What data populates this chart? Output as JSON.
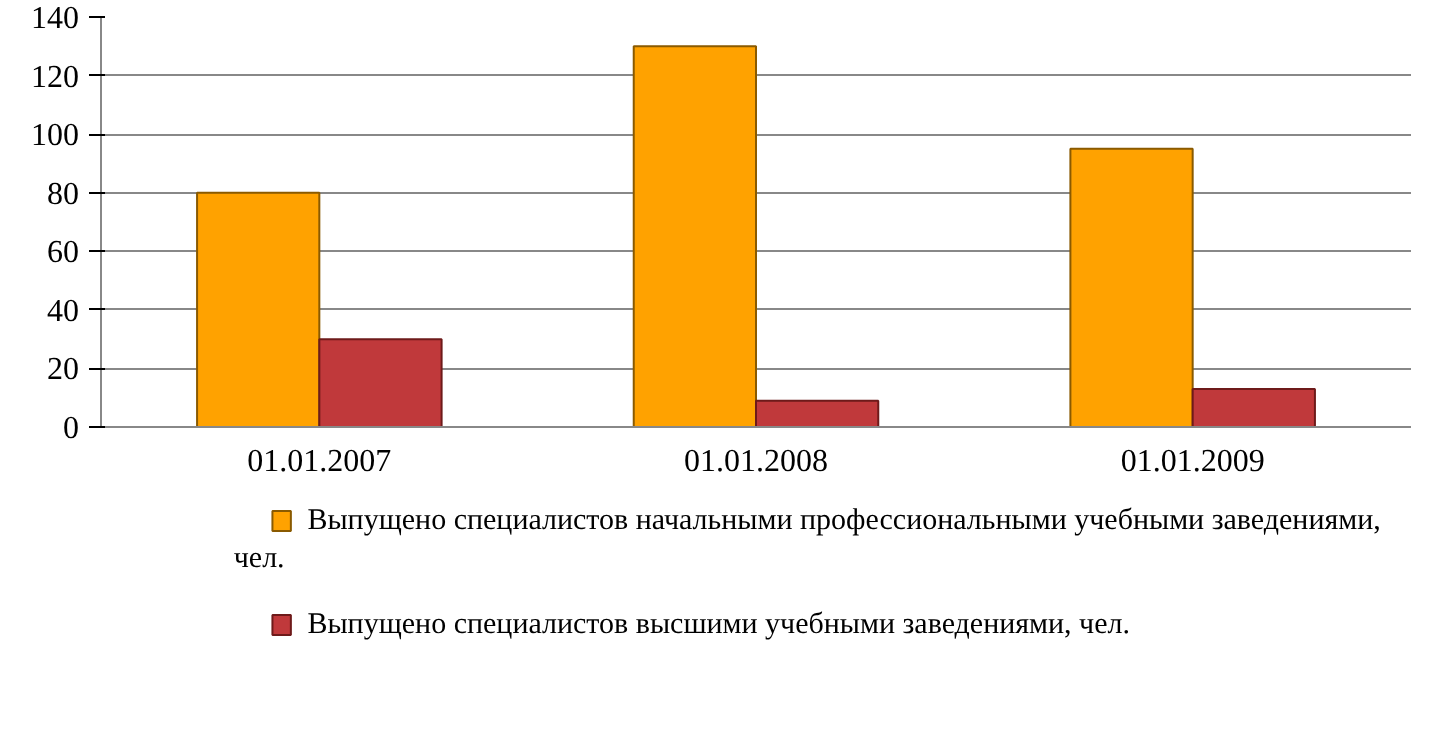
{
  "chart_data": {
    "type": "bar",
    "categories": [
      "01.01.2007",
      "01.01.2008",
      "01.01.2009"
    ],
    "series": [
      {
        "name": "Выпущено специалистов начальными профессиональными учебными заведениями, чел.",
        "color": "#ffa200",
        "values": [
          80,
          130,
          95
        ]
      },
      {
        "name": "Выпущено специалистов высшими учебными заведениями, чел.",
        "color": "#c0393b",
        "values": [
          30,
          9,
          13
        ]
      }
    ],
    "ylim": [
      0,
      140
    ],
    "yticks": [
      0,
      20,
      40,
      60,
      80,
      100,
      120,
      140
    ],
    "grid": "y",
    "legend": "bottom"
  }
}
